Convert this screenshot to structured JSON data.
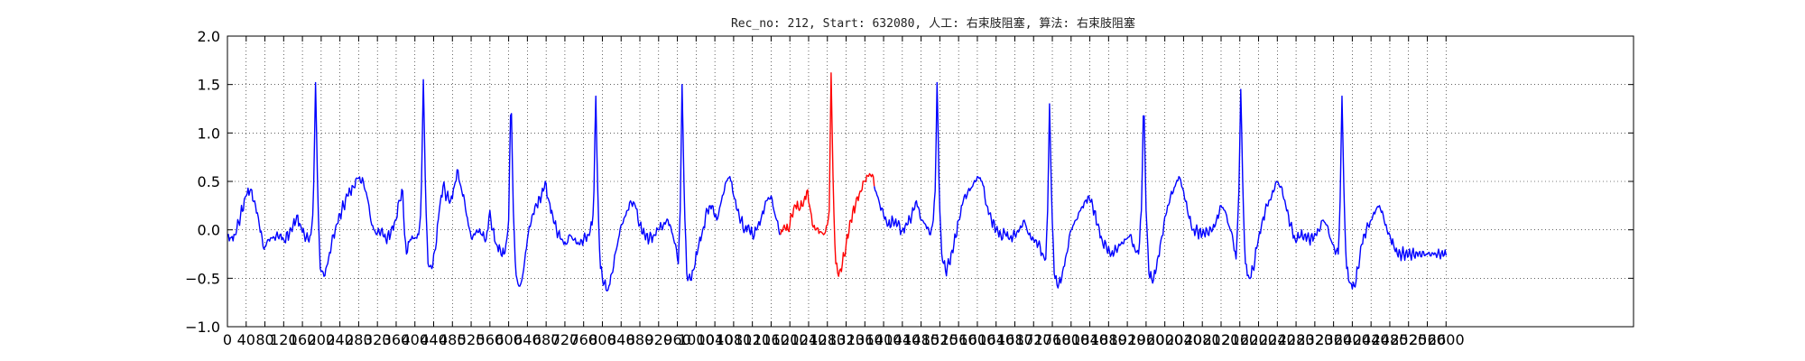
{
  "chart_data": {
    "type": "line",
    "title": "Rec_no: 212, Start: 632080, 人工: 右束肢阻塞, 算法: 右束肢阻塞",
    "xlabel": "",
    "ylabel": "",
    "xlim": [
      0,
      3000
    ],
    "ylim": [
      -1.0,
      2.0
    ],
    "grid": true,
    "grid_style": "dotted",
    "x_tick_step": 40,
    "x_tick_labels": [
      "0",
      "40",
      "80",
      "120",
      "160",
      "200",
      "240",
      "280",
      "320",
      "360",
      "400",
      "440",
      "480",
      "520",
      "560",
      "600",
      "640",
      "680",
      "720",
      "760",
      "800",
      "840",
      "880",
      "920",
      "960",
      "1000",
      "1040",
      "1080",
      "1120",
      "1160",
      "1200",
      "1240",
      "1280",
      "1320",
      "1360",
      "1400",
      "1440",
      "1480",
      "1520",
      "1560",
      "1600",
      "1640",
      "1680",
      "1720",
      "1760",
      "1800",
      "1840",
      "1880",
      "1920",
      "1960",
      "2000",
      "2040",
      "2080",
      "2120",
      "2160",
      "2200",
      "2240",
      "2280",
      "2320",
      "2360",
      "2400",
      "2440",
      "2480",
      "2520",
      "2560",
      "2600"
    ],
    "y_tick_labels": [
      "2.0",
      "1.5",
      "1.0",
      "0.5",
      "0.0",
      "−0.5",
      "−1.0"
    ],
    "y_ticks": [
      2.0,
      1.5,
      1.0,
      0.5,
      0.0,
      -0.5,
      -1.0
    ],
    "series": [
      {
        "color": "#0000ff",
        "x_range": [
          0,
          1180
        ]
      },
      {
        "color": "#ff0000",
        "x_range": [
          1180,
          1380
        ]
      },
      {
        "color": "#0000ff",
        "x_range": [
          1380,
          2600
        ]
      }
    ],
    "keypoints": [
      [
        0,
        -0.05
      ],
      [
        8,
        -0.08
      ],
      [
        16,
        -0.05
      ],
      [
        28,
        0.15
      ],
      [
        40,
        0.35
      ],
      [
        48,
        0.4
      ],
      [
        58,
        0.3
      ],
      [
        68,
        0.05
      ],
      [
        78,
        -0.2
      ],
      [
        88,
        -0.1
      ],
      [
        100,
        -0.08
      ],
      [
        112,
        -0.05
      ],
      [
        120,
        -0.1
      ],
      [
        132,
        -0.05
      ],
      [
        140,
        0.05
      ],
      [
        148,
        0.15
      ],
      [
        156,
        0.05
      ],
      [
        164,
        -0.05
      ],
      [
        172,
        -0.1
      ],
      [
        178,
        -0.05
      ],
      [
        183,
        0.2
      ],
      [
        188,
        1.52
      ],
      [
        193,
        0.3
      ],
      [
        198,
        -0.4
      ],
      [
        206,
        -0.48
      ],
      [
        214,
        -0.35
      ],
      [
        222,
        -0.15
      ],
      [
        232,
        0.05
      ],
      [
        244,
        0.2
      ],
      [
        256,
        0.35
      ],
      [
        268,
        0.45
      ],
      [
        278,
        0.53
      ],
      [
        290,
        0.5
      ],
      [
        300,
        0.3
      ],
      [
        308,
        0.05
      ],
      [
        318,
        -0.05
      ],
      [
        328,
        0.0
      ],
      [
        338,
        -0.1
      ],
      [
        348,
        -0.05
      ],
      [
        358,
        0.1
      ],
      [
        368,
        0.3
      ],
      [
        374,
        0.4
      ],
      [
        378,
        -0.05
      ],
      [
        382,
        -0.25
      ],
      [
        390,
        -0.1
      ],
      [
        400,
        -0.08
      ],
      [
        408,
        -0.05
      ],
      [
        413,
        0.2
      ],
      [
        418,
        1.55
      ],
      [
        423,
        0.3
      ],
      [
        428,
        -0.35
      ],
      [
        436,
        -0.4
      ],
      [
        444,
        -0.2
      ],
      [
        452,
        0.2
      ],
      [
        460,
        0.45
      ],
      [
        468,
        0.35
      ],
      [
        476,
        0.3
      ],
      [
        484,
        0.45
      ],
      [
        490,
        0.62
      ],
      [
        498,
        0.45
      ],
      [
        506,
        0.3
      ],
      [
        514,
        0.05
      ],
      [
        522,
        -0.1
      ],
      [
        532,
        0.0
      ],
      [
        542,
        -0.05
      ],
      [
        552,
        -0.1
      ],
      [
        560,
        0.2
      ],
      [
        566,
        0.0
      ],
      [
        574,
        -0.15
      ],
      [
        582,
        -0.2
      ],
      [
        590,
        -0.25
      ],
      [
        596,
        -0.1
      ],
      [
        600,
        0.1
      ],
      [
        605,
        1.45
      ],
      [
        610,
        0.2
      ],
      [
        615,
        -0.45
      ],
      [
        623,
        -0.6
      ],
      [
        631,
        -0.45
      ],
      [
        640,
        -0.1
      ],
      [
        650,
        0.15
      ],
      [
        660,
        0.25
      ],
      [
        670,
        0.35
      ],
      [
        678,
        0.5
      ],
      [
        686,
        0.3
      ],
      [
        694,
        0.15
      ],
      [
        702,
        0.0
      ],
      [
        712,
        -0.1
      ],
      [
        722,
        -0.15
      ],
      [
        730,
        -0.05
      ],
      [
        740,
        -0.1
      ],
      [
        750,
        -0.15
      ],
      [
        760,
        -0.1
      ],
      [
        770,
        -0.05
      ],
      [
        778,
        0.05
      ],
      [
        782,
        0.4
      ],
      [
        786,
        1.38
      ],
      [
        791,
        0.2
      ],
      [
        796,
        -0.4
      ],
      [
        804,
        -0.55
      ],
      [
        812,
        -0.62
      ],
      [
        820,
        -0.45
      ],
      [
        830,
        -0.2
      ],
      [
        840,
        0.05
      ],
      [
        850,
        0.15
      ],
      [
        860,
        0.3
      ],
      [
        870,
        0.25
      ],
      [
        880,
        0.05
      ],
      [
        890,
        -0.05
      ],
      [
        900,
        -0.1
      ],
      [
        910,
        -0.05
      ],
      [
        920,
        0.0
      ],
      [
        930,
        0.05
      ],
      [
        940,
        0.1
      ],
      [
        950,
        -0.05
      ],
      [
        958,
        -0.2
      ],
      [
        962,
        -0.35
      ],
      [
        966,
        0.2
      ],
      [
        970,
        1.5
      ],
      [
        975,
        0.25
      ],
      [
        980,
        -0.45
      ],
      [
        988,
        -0.52
      ],
      [
        996,
        -0.4
      ],
      [
        1004,
        -0.2
      ],
      [
        1014,
        0.0
      ],
      [
        1024,
        0.2
      ],
      [
        1034,
        0.25
      ],
      [
        1044,
        0.1
      ],
      [
        1054,
        0.3
      ],
      [
        1064,
        0.5
      ],
      [
        1072,
        0.55
      ],
      [
        1080,
        0.35
      ],
      [
        1088,
        0.2
      ],
      [
        1096,
        0.1
      ],
      [
        1104,
        0.0
      ],
      [
        1112,
        0.05
      ],
      [
        1120,
        -0.05
      ],
      [
        1130,
        0.0
      ],
      [
        1140,
        0.15
      ],
      [
        1150,
        0.3
      ],
      [
        1160,
        0.35
      ],
      [
        1166,
        0.2
      ],
      [
        1172,
        0.1
      ],
      [
        1180,
        -0.05
      ],
      [
        1188,
        0.05
      ],
      [
        1196,
        0.0
      ],
      [
        1204,
        0.15
      ],
      [
        1212,
        0.25
      ],
      [
        1220,
        0.2
      ],
      [
        1230,
        0.3
      ],
      [
        1236,
        0.4
      ],
      [
        1242,
        0.25
      ],
      [
        1248,
        0.05
      ],
      [
        1256,
        0.0
      ],
      [
        1264,
        -0.02
      ],
      [
        1272,
        -0.05
      ],
      [
        1280,
        0.05
      ],
      [
        1284,
        0.2
      ],
      [
        1288,
        1.62
      ],
      [
        1293,
        0.3
      ],
      [
        1298,
        -0.35
      ],
      [
        1304,
        -0.48
      ],
      [
        1312,
        -0.35
      ],
      [
        1320,
        -0.15
      ],
      [
        1330,
        0.1
      ],
      [
        1340,
        0.25
      ],
      [
        1350,
        0.4
      ],
      [
        1360,
        0.5
      ],
      [
        1370,
        0.58
      ],
      [
        1378,
        0.55
      ],
      [
        1380,
        0.45
      ],
      [
        1390,
        0.3
      ],
      [
        1400,
        0.15
      ],
      [
        1410,
        0.05
      ],
      [
        1420,
        0.1
      ],
      [
        1430,
        0.05
      ],
      [
        1440,
        0.0
      ],
      [
        1450,
        0.05
      ],
      [
        1460,
        0.15
      ],
      [
        1470,
        0.3
      ],
      [
        1480,
        0.1
      ],
      [
        1490,
        0.05
      ],
      [
        1500,
        -0.05
      ],
      [
        1506,
        0.1
      ],
      [
        1510,
        0.4
      ],
      [
        1514,
        1.52
      ],
      [
        1519,
        0.3
      ],
      [
        1524,
        -0.25
      ],
      [
        1532,
        -0.42
      ],
      [
        1540,
        -0.35
      ],
      [
        1550,
        -0.15
      ],
      [
        1560,
        0.1
      ],
      [
        1570,
        0.3
      ],
      [
        1580,
        0.4
      ],
      [
        1590,
        0.45
      ],
      [
        1600,
        0.55
      ],
      [
        1610,
        0.5
      ],
      [
        1620,
        0.25
      ],
      [
        1630,
        0.1
      ],
      [
        1640,
        0.0
      ],
      [
        1650,
        -0.05
      ],
      [
        1660,
        -0.05
      ],
      [
        1670,
        -0.08
      ],
      [
        1680,
        -0.05
      ],
      [
        1690,
        0.0
      ],
      [
        1700,
        0.1
      ],
      [
        1710,
        -0.05
      ],
      [
        1720,
        -0.1
      ],
      [
        1730,
        -0.15
      ],
      [
        1740,
        -0.25
      ],
      [
        1746,
        -0.3
      ],
      [
        1750,
        0.2
      ],
      [
        1754,
        1.3
      ],
      [
        1759,
        0.2
      ],
      [
        1764,
        -0.45
      ],
      [
        1772,
        -0.6
      ],
      [
        1780,
        -0.5
      ],
      [
        1790,
        -0.25
      ],
      [
        1800,
        0.0
      ],
      [
        1810,
        0.1
      ],
      [
        1820,
        0.2
      ],
      [
        1830,
        0.3
      ],
      [
        1838,
        0.35
      ],
      [
        1846,
        0.25
      ],
      [
        1856,
        0.05
      ],
      [
        1866,
        -0.1
      ],
      [
        1876,
        -0.2
      ],
      [
        1886,
        -0.25
      ],
      [
        1896,
        -0.2
      ],
      [
        1906,
        -0.15
      ],
      [
        1916,
        -0.1
      ],
      [
        1926,
        -0.05
      ],
      [
        1936,
        -0.2
      ],
      [
        1944,
        -0.25
      ],
      [
        1950,
        0.2
      ],
      [
        1955,
        1.42
      ],
      [
        1960,
        0.2
      ],
      [
        1966,
        -0.45
      ],
      [
        1974,
        -0.55
      ],
      [
        1982,
        -0.4
      ],
      [
        1992,
        -0.1
      ],
      [
        2002,
        0.15
      ],
      [
        2012,
        0.35
      ],
      [
        2022,
        0.45
      ],
      [
        2030,
        0.55
      ],
      [
        2040,
        0.4
      ],
      [
        2050,
        0.15
      ],
      [
        2060,
        0.0
      ],
      [
        2070,
        -0.02
      ],
      [
        2080,
        -0.05
      ],
      [
        2090,
        0.0
      ],
      [
        2100,
        -0.02
      ],
      [
        2110,
        0.1
      ],
      [
        2120,
        0.25
      ],
      [
        2128,
        0.2
      ],
      [
        2136,
        0.05
      ],
      [
        2144,
        -0.05
      ],
      [
        2152,
        -0.3
      ],
      [
        2158,
        0.4
      ],
      [
        2162,
        1.45
      ],
      [
        2167,
        0.3
      ],
      [
        2172,
        -0.35
      ],
      [
        2180,
        -0.5
      ],
      [
        2188,
        -0.4
      ],
      [
        2198,
        -0.15
      ],
      [
        2208,
        0.1
      ],
      [
        2218,
        0.25
      ],
      [
        2228,
        0.35
      ],
      [
        2238,
        0.5
      ],
      [
        2248,
        0.45
      ],
      [
        2258,
        0.25
      ],
      [
        2268,
        0.05
      ],
      [
        2278,
        -0.1
      ],
      [
        2288,
        -0.08
      ],
      [
        2298,
        -0.05
      ],
      [
        2308,
        -0.1
      ],
      [
        2318,
        -0.08
      ],
      [
        2328,
        0.0
      ],
      [
        2338,
        0.1
      ],
      [
        2346,
        0.05
      ],
      [
        2354,
        -0.1
      ],
      [
        2362,
        -0.2
      ],
      [
        2370,
        -0.25
      ],
      [
        2374,
        0.3
      ],
      [
        2378,
        1.38
      ],
      [
        2383,
        0.2
      ],
      [
        2388,
        -0.4
      ],
      [
        2396,
        -0.55
      ],
      [
        2404,
        -0.58
      ],
      [
        2412,
        -0.4
      ],
      [
        2420,
        -0.15
      ],
      [
        2430,
        0.0
      ],
      [
        2440,
        0.1
      ],
      [
        2450,
        0.2
      ],
      [
        2458,
        0.25
      ],
      [
        2466,
        0.15
      ],
      [
        2474,
        0.0
      ],
      [
        2482,
        -0.1
      ],
      [
        2490,
        -0.2
      ],
      [
        2496,
        -0.25
      ]
    ]
  }
}
